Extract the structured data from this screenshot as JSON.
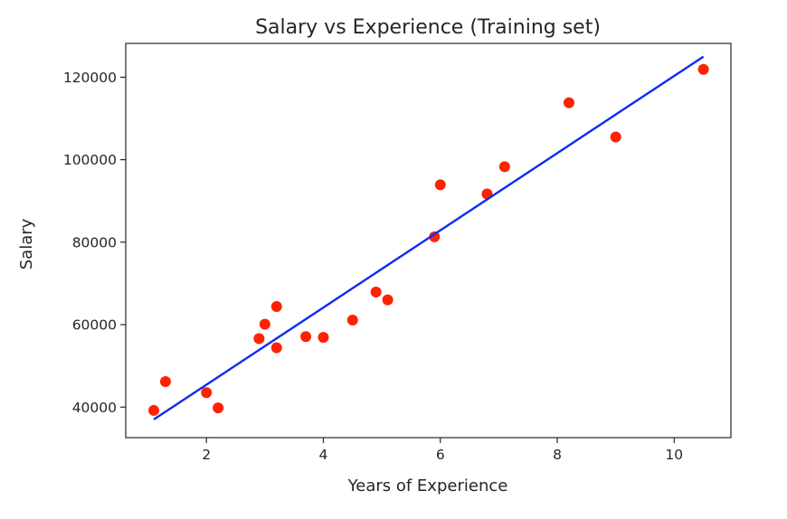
{
  "chart_data": {
    "type": "scatter",
    "title": "Salary vs Experience (Training set)",
    "xlabel": "Years of Experience",
    "ylabel": "Salary",
    "xlim": [
      0.62,
      10.97
    ],
    "ylim": [
      32600,
      128200
    ],
    "xticks": [
      2,
      4,
      6,
      8,
      10
    ],
    "yticks": [
      40000,
      60000,
      80000,
      100000,
      120000
    ],
    "grid": false,
    "colors": {
      "points": "#ff2200",
      "line": "#0a2cf5",
      "axes": "#262626"
    },
    "series": [
      {
        "type": "scatter",
        "x": [
          1.1,
          1.3,
          2.0,
          2.2,
          2.9,
          3.0,
          3.2,
          3.2,
          3.7,
          4.0,
          4.5,
          4.9,
          5.1,
          5.9,
          6.0,
          6.8,
          7.1,
          8.2,
          9.0,
          10.5
        ],
        "y": [
          39200,
          46200,
          43500,
          39800,
          56600,
          60100,
          64400,
          54400,
          57100,
          56900,
          61100,
          67900,
          66000,
          81300,
          93900,
          91700,
          98300,
          113800,
          105500,
          121900
        ]
      },
      {
        "type": "line",
        "x": [
          1.1,
          10.5
        ],
        "y": [
          37000,
          125000
        ]
      }
    ]
  }
}
